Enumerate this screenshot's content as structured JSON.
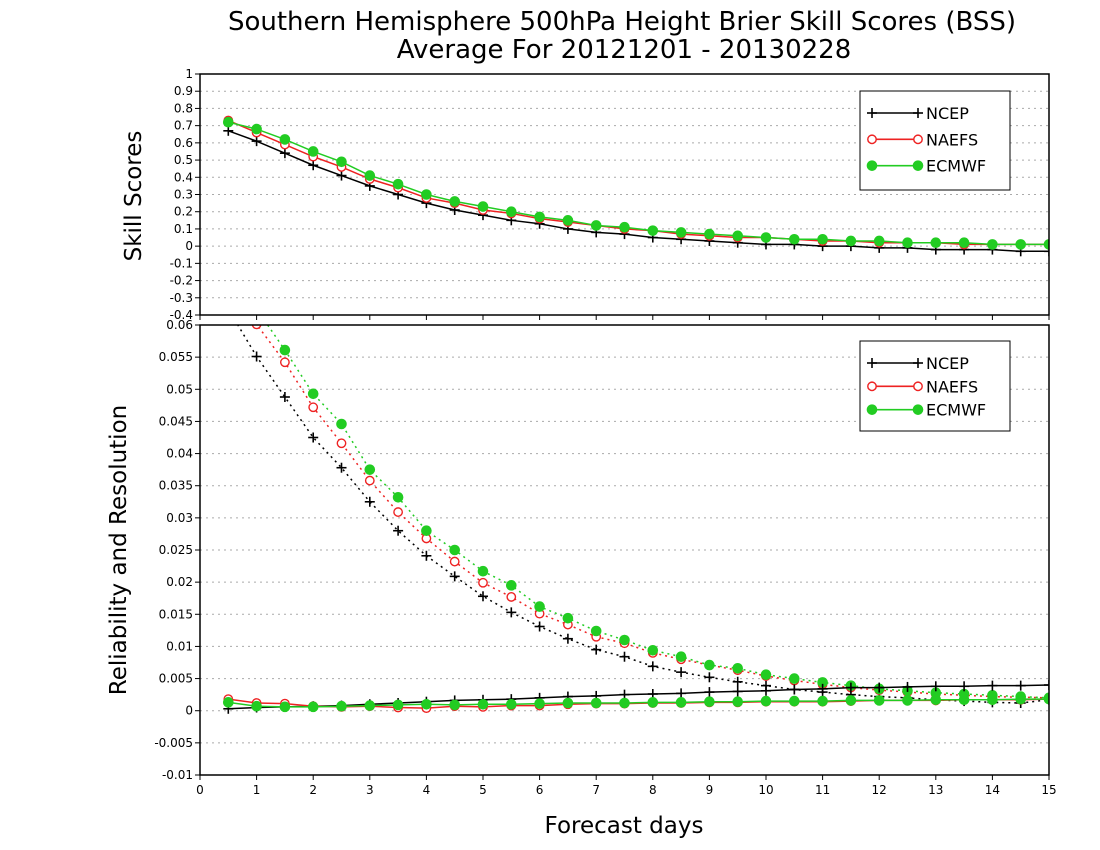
{
  "title": {
    "line1": "Southern Hemisphere 500hPa Height Brier Skill Scores (BSS)",
    "line2": "Average For 20121201 - 20130228"
  },
  "xlabel": "Forecast days",
  "colors": {
    "NCEP": "#000000",
    "NAEFS": "#ee2222",
    "ECMWF": "#22cc22",
    "grid": "#aaaaaa",
    "frame": "#000000"
  },
  "chart_data": [
    {
      "type": "line",
      "panel": "top",
      "ylabel": "Skill Scores",
      "xlim": [
        0,
        15
      ],
      "ylim": [
        -0.4,
        1.0
      ],
      "grid": true,
      "legend_position": "top-right",
      "x_ticks": [
        "0",
        "1",
        "2",
        "3",
        "4",
        "5",
        "6",
        "7",
        "8",
        "9",
        "10",
        "11",
        "12",
        "13",
        "14",
        "15"
      ],
      "y_ticks": [
        "-0.4",
        "-0.3",
        "-0.2",
        "-0.1",
        "0",
        "0.1",
        "0.2",
        "0.3",
        "0.4",
        "0.5",
        "0.6",
        "0.7",
        "0.8",
        "0.9",
        "1"
      ],
      "x": [
        0.5,
        1,
        1.5,
        2,
        2.5,
        3,
        3.5,
        4,
        4.5,
        5,
        5.5,
        6,
        6.5,
        7,
        7.5,
        8,
        8.5,
        9,
        9.5,
        10,
        10.5,
        11,
        11.5,
        12,
        12.5,
        13,
        13.5,
        14,
        14.5,
        15
      ],
      "series": [
        {
          "name": "NCEP",
          "values": [
            0.67,
            0.61,
            0.54,
            0.47,
            0.41,
            0.35,
            0.3,
            0.25,
            0.21,
            0.18,
            0.15,
            0.13,
            0.1,
            0.08,
            0.07,
            0.05,
            0.04,
            0.03,
            0.02,
            0.01,
            0.01,
            0.0,
            0.0,
            -0.01,
            -0.01,
            -0.02,
            -0.02,
            -0.02,
            -0.03,
            -0.03
          ]
        },
        {
          "name": "NAEFS",
          "values": [
            0.73,
            0.66,
            0.59,
            0.52,
            0.46,
            0.39,
            0.34,
            0.28,
            0.25,
            0.21,
            0.19,
            0.16,
            0.14,
            0.12,
            0.1,
            0.09,
            0.07,
            0.06,
            0.05,
            0.05,
            0.04,
            0.03,
            0.03,
            0.02,
            0.02,
            0.02,
            0.01,
            0.01,
            0.01,
            0.01
          ]
        },
        {
          "name": "ECMWF",
          "values": [
            0.72,
            0.68,
            0.62,
            0.55,
            0.49,
            0.41,
            0.36,
            0.3,
            0.26,
            0.23,
            0.2,
            0.17,
            0.15,
            0.12,
            0.11,
            0.09,
            0.08,
            0.07,
            0.06,
            0.05,
            0.04,
            0.04,
            0.03,
            0.03,
            0.02,
            0.02,
            0.02,
            0.01,
            0.01,
            0.01
          ]
        }
      ],
      "legend": [
        "NCEP",
        "NAEFS",
        "ECMWF"
      ]
    },
    {
      "type": "line",
      "panel": "bottom",
      "ylabel": "Reliability and Resolution",
      "xlim": [
        0,
        15
      ],
      "ylim": [
        -0.01,
        0.06
      ],
      "grid": true,
      "legend_position": "top-right",
      "x_ticks": [
        "0",
        "1",
        "2",
        "3",
        "4",
        "5",
        "6",
        "7",
        "8",
        "9",
        "10",
        "11",
        "12",
        "13",
        "14",
        "15"
      ],
      "y_ticks": [
        "-0.01",
        "-0.005",
        "0",
        "0.005",
        "0.01",
        "0.015",
        "0.02",
        "0.025",
        "0.03",
        "0.035",
        "0.04",
        "0.045",
        "0.05",
        "0.055",
        "0.06"
      ],
      "x": [
        0.5,
        1,
        1.5,
        2,
        2.5,
        3,
        3.5,
        4,
        4.5,
        5,
        5.5,
        6,
        6.5,
        7,
        7.5,
        8,
        8.5,
        9,
        9.5,
        10,
        10.5,
        11,
        11.5,
        12,
        12.5,
        13,
        13.5,
        14,
        14.5,
        15
      ],
      "series": [
        {
          "name": "NCEP",
          "style": "dotted",
          "values": [
            0.0625,
            0.0551,
            0.0488,
            0.0425,
            0.0378,
            0.0325,
            0.028,
            0.0241,
            0.0209,
            0.0178,
            0.0153,
            0.0131,
            0.0112,
            0.0095,
            0.0084,
            0.0069,
            0.006,
            0.0052,
            0.0045,
            0.0039,
            0.0033,
            0.0029,
            0.0025,
            0.0022,
            0.002,
            0.0017,
            0.0015,
            0.0013,
            0.0012,
            0.0017
          ]
        },
        {
          "name": "NAEFS",
          "style": "dotted",
          "values": [
            0.0655,
            0.0601,
            0.0542,
            0.0472,
            0.0416,
            0.0358,
            0.0309,
            0.0268,
            0.0232,
            0.0199,
            0.0177,
            0.0151,
            0.0134,
            0.0115,
            0.0105,
            0.009,
            0.008,
            0.0071,
            0.0063,
            0.0054,
            0.0047,
            0.0041,
            0.0036,
            0.0032,
            0.0029,
            0.0026,
            0.0024,
            0.0022,
            0.0021,
            0.002
          ]
        },
        {
          "name": "ECMWF",
          "style": "dotted",
          "values": [
            0.067,
            0.0625,
            0.0561,
            0.0493,
            0.0446,
            0.0375,
            0.0332,
            0.028,
            0.025,
            0.0217,
            0.0195,
            0.0162,
            0.0144,
            0.0124,
            0.011,
            0.0094,
            0.0084,
            0.0071,
            0.0066,
            0.0056,
            0.005,
            0.0044,
            0.0039,
            0.0034,
            0.0031,
            0.0028,
            0.0026,
            0.0024,
            0.0022,
            0.002
          ]
        },
        {
          "name": "NCEP",
          "style": "solid",
          "values": [
            0.0003,
            0.0005,
            0.0006,
            0.0007,
            0.0008,
            0.001,
            0.0012,
            0.0014,
            0.0016,
            0.0017,
            0.0018,
            0.002,
            0.0022,
            0.0023,
            0.0025,
            0.0026,
            0.0027,
            0.0029,
            0.003,
            0.0031,
            0.0033,
            0.0034,
            0.0036,
            0.0036,
            0.0037,
            0.0038,
            0.0038,
            0.0039,
            0.0039,
            0.004
          ]
        },
        {
          "name": "NAEFS",
          "style": "solid",
          "values": [
            0.0018,
            0.0012,
            0.0011,
            0.0007,
            0.0006,
            0.0007,
            0.0005,
            0.0004,
            0.0007,
            0.0006,
            0.0008,
            0.0008,
            0.001,
            0.0011,
            0.0011,
            0.0012,
            0.0012,
            0.0013,
            0.0013,
            0.0014,
            0.0014,
            0.0014,
            0.0015,
            0.0016,
            0.0016,
            0.0016,
            0.0017,
            0.0017,
            0.0017,
            0.0018
          ]
        },
        {
          "name": "ECMWF",
          "style": "solid",
          "values": [
            0.0013,
            0.0007,
            0.0006,
            0.0006,
            0.0007,
            0.0008,
            0.0009,
            0.001,
            0.0009,
            0.001,
            0.001,
            0.0011,
            0.0012,
            0.0012,
            0.0012,
            0.0013,
            0.0013,
            0.0014,
            0.0014,
            0.0015,
            0.0015,
            0.0015,
            0.0016,
            0.0016,
            0.0016,
            0.0017,
            0.0017,
            0.0017,
            0.0018,
            0.0018
          ]
        }
      ],
      "legend": [
        "NCEP",
        "NAEFS",
        "ECMWF"
      ]
    }
  ]
}
